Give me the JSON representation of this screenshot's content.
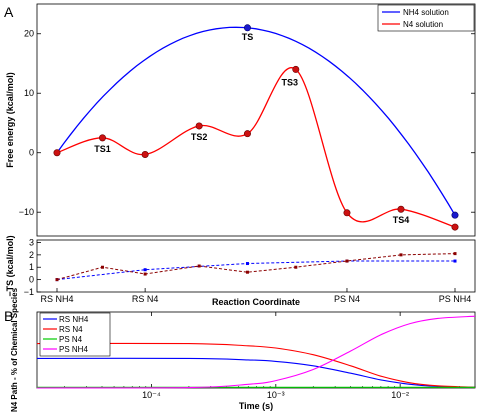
{
  "panel_labels": [
    "A",
    "B"
  ],
  "chart_data": [
    {
      "type": "line",
      "panel": "A",
      "ylabel": "Free energy (kcal/mol)",
      "ylim": [
        -14,
        25
      ],
      "yticks": [
        "20",
        "10",
        "0",
        "−10"
      ],
      "ytick_values": [
        20,
        10,
        0,
        -10
      ],
      "legend_position": "top-right",
      "series": [
        {
          "name": "NH4 solution",
          "color": "#0000ff",
          "points": [
            [
              0,
              0
            ],
            [
              3.35,
              21
            ],
            [
              7.0,
              -10.5
            ]
          ]
        },
        {
          "name": "N4 solution",
          "color": "#ff0000",
          "points": [
            [
              0,
              0
            ],
            [
              0.8,
              2.5
            ],
            [
              1.55,
              -0.3
            ],
            [
              2.5,
              4.5
            ],
            [
              3.35,
              3.2
            ],
            [
              4.2,
              14
            ],
            [
              5.1,
              -10.1
            ],
            [
              6.05,
              -9.5
            ],
            [
              7.0,
              -12.5
            ]
          ]
        }
      ],
      "annotations": [
        {
          "text": "TS",
          "x": 3.35,
          "y": 21
        },
        {
          "text": "TS1",
          "x": 0.8,
          "y": 2.5
        },
        {
          "text": "TS2",
          "x": 2.5,
          "y": 4.5
        },
        {
          "text": "TS3",
          "x": 4.2,
          "y": 14
        },
        {
          "text": "TS4",
          "x": 6.05,
          "y": -9.5
        }
      ]
    },
    {
      "type": "line",
      "panel": "A-lower",
      "ylabel": "−TS (kcal/mol)",
      "xlabel": "Reaction Coordinate",
      "ylim": [
        -1,
        3.2
      ],
      "yticks": [
        "3",
        "2",
        "1",
        "0",
        "−1"
      ],
      "ytick_values": [
        3,
        2,
        1,
        0,
        -1
      ],
      "xticks": [
        "RS NH4",
        "RS N4",
        "PS N4",
        "PS NH4"
      ],
      "xtick_values": [
        0,
        1.55,
        5.1,
        7.0
      ],
      "series": [
        {
          "name": "NH4 solution",
          "color": "#0000ff",
          "points": [
            [
              0,
              0
            ],
            [
              1.55,
              0.8
            ],
            [
              3.35,
              1.3
            ],
            [
              5.1,
              1.5
            ],
            [
              7.0,
              1.5
            ]
          ]
        },
        {
          "name": "N4 solution",
          "color": "#8b0000",
          "points": [
            [
              0,
              0
            ],
            [
              0.8,
              1.0
            ],
            [
              1.55,
              0.45
            ],
            [
              2.5,
              1.1
            ],
            [
              3.35,
              0.6
            ],
            [
              4.2,
              1.0
            ],
            [
              5.1,
              1.5
            ],
            [
              6.05,
              2.0
            ],
            [
              7.0,
              2.1
            ]
          ]
        }
      ]
    },
    {
      "type": "line",
      "panel": "B",
      "ylabel": "N4 Path - % of Chemical Species",
      "xlabel": "Time (s)",
      "xscale": "log",
      "xlim": [
        1.2e-05,
        0.04
      ],
      "ylim": [
        0,
        100
      ],
      "xticks": [
        "10⁻⁴",
        "10⁻³",
        "10⁻²"
      ],
      "xtick_values": [
        0.0001,
        0.001,
        0.01
      ],
      "legend_position": "top-left",
      "series": [
        {
          "name": "RS NH4",
          "color": "#0000ff",
          "points": [
            [
              1.2e-05,
              40
            ],
            [
              0.0002,
              40
            ],
            [
              0.0006,
              38
            ],
            [
              0.001,
              36
            ],
            [
              0.002,
              30
            ],
            [
              0.004,
              20
            ],
            [
              0.007,
              11
            ],
            [
              0.012,
              5
            ],
            [
              0.02,
              2
            ],
            [
              0.04,
              1
            ]
          ]
        },
        {
          "name": "RS N4",
          "color": "#ff0000",
          "points": [
            [
              1.2e-05,
              60
            ],
            [
              0.0002,
              60
            ],
            [
              0.0006,
              57
            ],
            [
              0.001,
              54
            ],
            [
              0.002,
              45
            ],
            [
              0.004,
              30
            ],
            [
              0.007,
              16
            ],
            [
              0.012,
              7
            ],
            [
              0.02,
              3
            ],
            [
              0.04,
              1
            ]
          ]
        },
        {
          "name": "PS N4",
          "color": "#00cc00",
          "points": [
            [
              1.2e-05,
              1
            ],
            [
              0.04,
              1
            ]
          ]
        },
        {
          "name": "PS NH4",
          "color": "#ff00ff",
          "points": [
            [
              1.2e-05,
              0
            ],
            [
              0.0002,
              0.5
            ],
            [
              0.0006,
              5
            ],
            [
              0.001,
              10
            ],
            [
              0.002,
              25
            ],
            [
              0.004,
              50
            ],
            [
              0.007,
              72
            ],
            [
              0.012,
              87
            ],
            [
              0.02,
              94
            ],
            [
              0.04,
              97
            ]
          ]
        }
      ]
    }
  ]
}
